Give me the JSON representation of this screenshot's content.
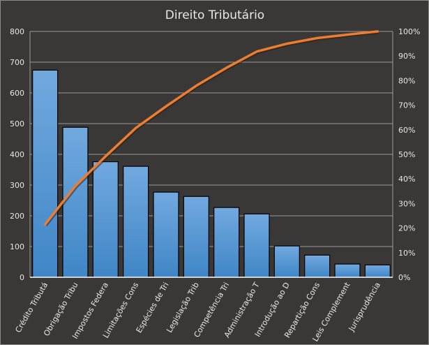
{
  "chart_data": {
    "type": "bar",
    "title": "Direito Tributário",
    "categories": [
      "Crédito Tributá",
      "Obrigação Tribu",
      "Impostos Federa",
      "Limitações Cons",
      "Espécies de Tri",
      "Legislação Trib",
      "Competência Tri",
      "Administração T",
      "Introdução ao D",
      "Repartição Cons",
      "Leis Complement",
      "Jurisprudência"
    ],
    "series": [
      {
        "type": "bar",
        "values": [
          674,
          488,
          376,
          361,
          277,
          263,
          227,
          206,
          102,
          72,
          43,
          40
        ],
        "color": "#4a90d2",
        "axis": "left"
      },
      {
        "type": "line",
        "values": [
          21.5,
          37.1,
          49.2,
          60.7,
          69.5,
          77.9,
          85.2,
          91.8,
          95.0,
          97.3,
          98.7,
          100
        ],
        "color": "#ed7d31",
        "axis": "right"
      }
    ],
    "ylim": [
      0,
      800
    ],
    "yticks": [
      "0",
      "100",
      "200",
      "300",
      "400",
      "500",
      "600",
      "700",
      "800"
    ],
    "y2lim": [
      0,
      100
    ],
    "y2ticks": [
      "0%",
      "10%",
      "20%",
      "30%",
      "40%",
      "50%",
      "60%",
      "70%",
      "80%",
      "90%",
      "100%"
    ],
    "grid": true,
    "xlabel": "",
    "ylabel": ""
  }
}
